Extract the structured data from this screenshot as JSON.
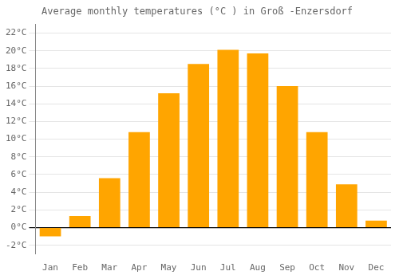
{
  "chart_data": {
    "type": "bar",
    "title": "Average monthly temperatures (°C ) in Groß -Enzersdorf",
    "categories": [
      "Jan",
      "Feb",
      "Mar",
      "Apr",
      "May",
      "Jun",
      "Jul",
      "Aug",
      "Sep",
      "Oct",
      "Nov",
      "Dec"
    ],
    "values": [
      -1.0,
      1.3,
      5.6,
      10.8,
      15.2,
      18.5,
      20.1,
      19.7,
      16.0,
      10.8,
      4.9,
      0.8
    ],
    "color": "#FFA500",
    "ylim": [
      -3.0,
      23.0
    ],
    "yticks": [
      {
        "value": -2,
        "label": "-2°C"
      },
      {
        "value": 0,
        "label": "0°C"
      },
      {
        "value": 2,
        "label": "2°C"
      },
      {
        "value": 4,
        "label": "4°C"
      },
      {
        "value": 6,
        "label": "6°C"
      },
      {
        "value": 8,
        "label": "8°C"
      },
      {
        "value": 10,
        "label": "10°C"
      },
      {
        "value": 12,
        "label": "12°C"
      },
      {
        "value": 14,
        "label": "14°C"
      },
      {
        "value": 16,
        "label": "16°C"
      },
      {
        "value": 18,
        "label": "18°C"
      },
      {
        "value": 20,
        "label": "20°C"
      },
      {
        "value": 22,
        "label": "22°C"
      }
    ],
    "grid": true
  }
}
